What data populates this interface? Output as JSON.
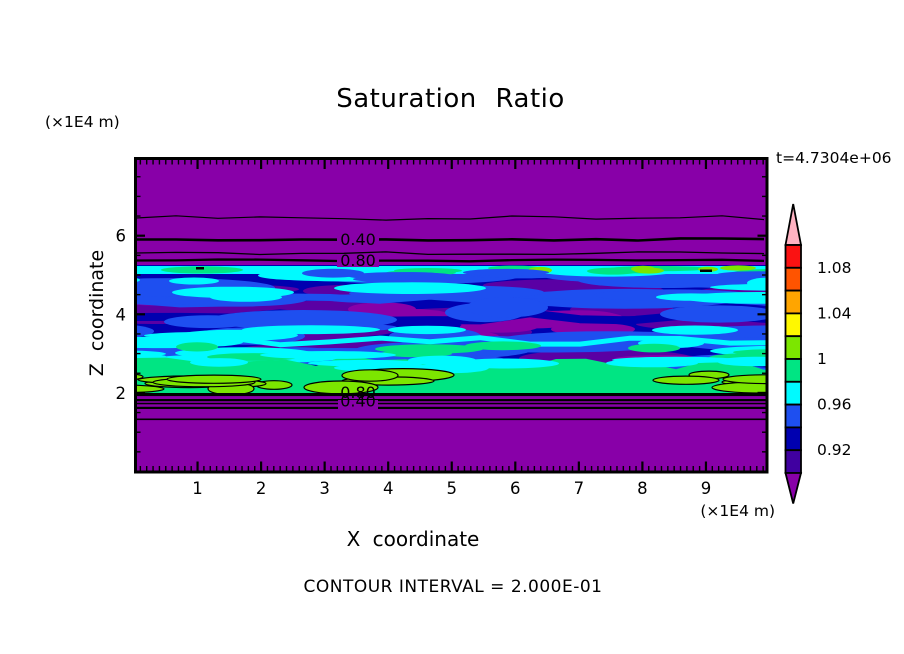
{
  "figure": {
    "title": "Saturation Ratio",
    "time_label": "t=4.7304e+06",
    "contour_interval_label": "CONTOUR INTERVAL = 2.000E-01",
    "x_axis": {
      "label": "X coordinate",
      "units": "(×1E4 m)",
      "tick_labels": [
        "1",
        "2",
        "3",
        "4",
        "5",
        "6",
        "7",
        "8",
        "9"
      ]
    },
    "y_axis": {
      "label": "Z coordinate",
      "units": "(×1E4 m)",
      "tick_labels": [
        "6",
        "4",
        "2"
      ]
    },
    "colorbar": {
      "tick_labels": [
        "1.08",
        "1.04",
        "1",
        "0.96",
        "0.92"
      ],
      "segment_colors_top_to_bottom": [
        "#FA1212",
        "#FF5400",
        "#FFA500",
        "#FFF800",
        "#7CE600",
        "#00E583",
        "#00FAFF",
        "#1E4FF0",
        "#0000B0",
        "#4000A0"
      ],
      "over_arrow_color": "#FFB2C2",
      "under_arrow_color": "#8800A8"
    },
    "contour_labels": {
      "upper": [
        "0.40",
        "0.80"
      ],
      "lower": [
        "0.80",
        "0.40"
      ]
    }
  },
  "chart_data": {
    "type": "heatmap",
    "subtype": "filled-contour",
    "title": "Saturation Ratio",
    "xlabel": "X coordinate (×1E4 m)",
    "ylabel": "Z coordinate (×1E4 m)",
    "x_range": [
      0,
      10
    ],
    "z_range": [
      0,
      8.05
    ],
    "time_annotation": "t=4.7304e+06",
    "contour_interval": 0.2,
    "labeled_line_contours": [
      0.4,
      0.8
    ],
    "fill_levels": [
      0.9,
      0.92,
      0.94,
      0.96,
      0.98,
      1.0,
      1.02,
      1.04,
      1.06,
      1.08,
      1.1
    ],
    "fill_colors_low_to_high": [
      "#4000A0",
      "#0000B0",
      "#1E4FF0",
      "#00FAFF",
      "#00E583",
      "#7CE600",
      "#FFF800",
      "#FFA500",
      "#FF5400",
      "#FA1212"
    ],
    "under_color": "#8800A8",
    "over_color": "#FFB2C2",
    "background_value_color": "#8800A8",
    "vertical_profile": [
      {
        "z": 8.0,
        "value": 0.05
      },
      {
        "z": 6.45,
        "value": 0.2
      },
      {
        "z": 5.9,
        "value": 0.4
      },
      {
        "z": 5.55,
        "value": 0.6
      },
      {
        "z": 5.3,
        "value": 0.8
      },
      {
        "z": 5.15,
        "value": 0.97
      },
      {
        "z": 4.5,
        "value": 0.93
      },
      {
        "z": 3.5,
        "value": 0.93
      },
      {
        "z": 2.8,
        "value": 0.96
      },
      {
        "z": 2.4,
        "value": 0.99
      },
      {
        "z": 2.1,
        "value": 1.01
      },
      {
        "z": 1.95,
        "value": 0.8
      },
      {
        "z": 1.75,
        "value": 0.6
      },
      {
        "z": 1.62,
        "value": 0.4
      },
      {
        "z": 1.35,
        "value": 0.2
      },
      {
        "z": 0.0,
        "value": 0.05
      }
    ],
    "description": "Horizontally streaked saturation-ratio field: uniform below-range purple above z≈5.3 and below z≈2.0, with line contours at 0.2 intervals (0.40 and 0.80 labeled top and bottom); between z≈2.0 and z≈5.2 a turbulent band of streaks near saturation (0.90-1.02): cyan stripe at the top edge, blue/navy/violet lenses through the middle, and a spring-green layer with black-outlined yellow-green patches (≈1.0) just above the lower boundary."
  }
}
